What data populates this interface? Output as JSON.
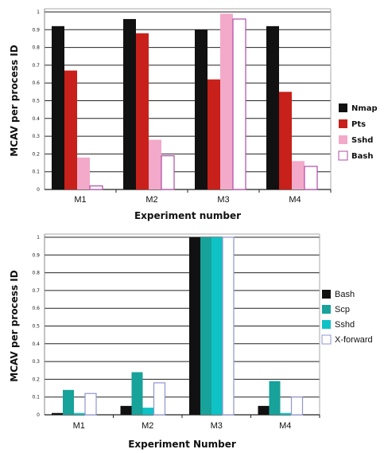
{
  "chart_data": [
    {
      "type": "bar",
      "categories": [
        "M1",
        "M2",
        "M3",
        "M4"
      ],
      "series": [
        {
          "name": "Nmap",
          "color": "#111111",
          "values": [
            0.92,
            0.96,
            0.9,
            0.92
          ]
        },
        {
          "name": "Pts",
          "color": "#c8201a",
          "values": [
            0.67,
            0.88,
            0.62,
            0.55
          ]
        },
        {
          "name": "Sshd",
          "color": "#f3a9c9",
          "values": [
            0.18,
            0.28,
            0.99,
            0.16
          ]
        },
        {
          "name": "Bash",
          "color": "#ffffff",
          "stroke": "#b04ba8",
          "values": [
            0.02,
            0.19,
            0.96,
            0.13
          ]
        }
      ],
      "yticks": [
        "0",
        "0.1",
        "0.2",
        "0.3",
        "0.4",
        "0.5",
        "0.6",
        "0.7",
        "0.8",
        "0.9",
        "1"
      ],
      "xlabel": "Experiment number",
      "ylabel": "MCAV per process ID",
      "ylim": [
        0,
        1
      ],
      "grid": true,
      "legend_position": "right"
    },
    {
      "type": "bar",
      "categories": [
        "M1",
        "M2",
        "M3",
        "M4"
      ],
      "series": [
        {
          "name": "Bash",
          "color": "#111111",
          "values": [
            0.01,
            0.05,
            1.0,
            0.05
          ]
        },
        {
          "name": "Scp",
          "color": "#17a29a",
          "values": [
            0.14,
            0.24,
            1.0,
            0.19
          ]
        },
        {
          "name": "Sshd",
          "color": "#0fc2c6",
          "values": [
            0.01,
            0.04,
            1.0,
            0.01
          ]
        },
        {
          "name": "X-forward",
          "color": "#ffffff",
          "stroke": "#8f95cf",
          "values": [
            0.12,
            0.18,
            1.0,
            0.1
          ]
        }
      ],
      "yticks": [
        "0",
        "0.1",
        "0.2",
        "0.3",
        "0.4",
        "0.5",
        "0.6",
        "0.7",
        "0.8",
        "0.9",
        "1"
      ],
      "xlabel": "Experiment Number",
      "ylabel": "MCAV per process ID",
      "ylim": [
        0,
        1
      ],
      "grid": true,
      "legend_position": "right"
    }
  ]
}
